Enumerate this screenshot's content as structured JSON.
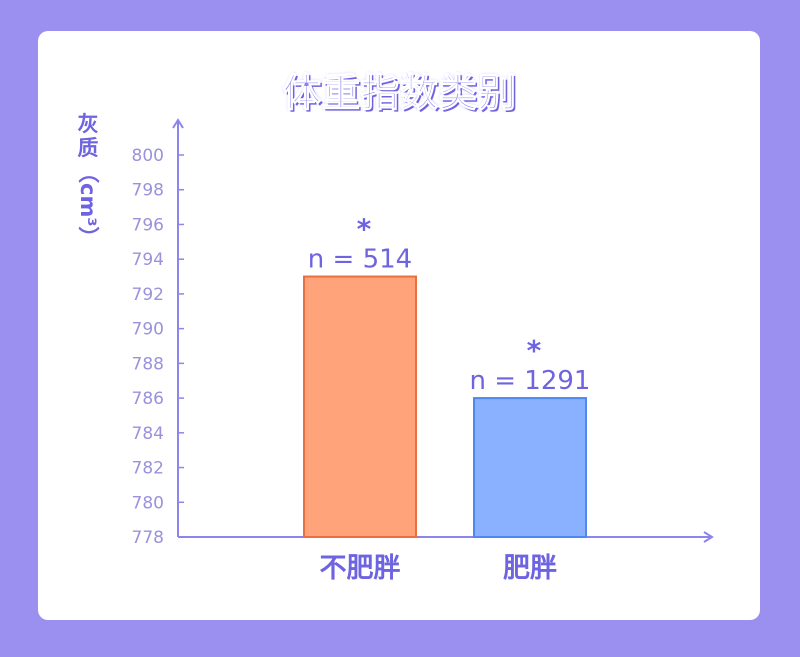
{
  "chart_data": {
    "type": "bar",
    "title": "体重指数类别",
    "ylabel_chars": [
      "灰",
      "质"
    ],
    "ylabel_unit": "（cm³）",
    "categories": [
      "不肥胖",
      "肥胖"
    ],
    "values": [
      793,
      786
    ],
    "annotations": [
      {
        "star": "*",
        "n": "n = 514"
      },
      {
        "star": "*",
        "n": "n = 1291"
      }
    ],
    "ylim": [
      778,
      800
    ],
    "yticks": [
      "778",
      "780",
      "782",
      "784",
      "786",
      "788",
      "790",
      "792",
      "794",
      "796",
      "798",
      "800"
    ],
    "colors": {
      "bar_fill": [
        "#ffa47a",
        "#8ab1ff"
      ],
      "bar_stroke": [
        "#e9703e",
        "#4f86ef"
      ],
      "axis": "#8e84ee",
      "tick_text": "#9a92dd",
      "label_text": "#6e63e0"
    }
  }
}
